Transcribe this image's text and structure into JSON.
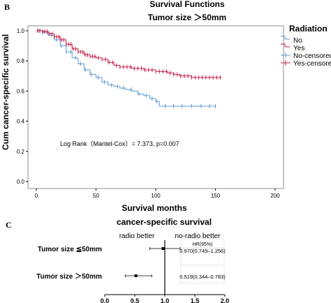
{
  "panel_b": {
    "panel_label": "B",
    "title": "Survival Functions",
    "subtitle": "Tumor size ＞50mm",
    "ylabel": "Cum cancer-specific survival",
    "xlabel": "Survival months",
    "annotation": "Log Rank（Mantel-Cox）= 7.373, p=0.007",
    "legend_title": "Radiation",
    "legend_items": [
      "No",
      "Yes",
      "No-censored",
      "Yes-censored"
    ],
    "colors": {
      "No": "#5b9bd5",
      "Yes": "#c81e46",
      "plot_bg": "#ffffff",
      "frame": "#8c8c8c"
    }
  },
  "panel_c": {
    "panel_label": "C",
    "title": "cancer-specific survival",
    "left_header": "radio better",
    "right_header": "no-radio better",
    "hr_header": "HR(95%)",
    "rows": [
      {
        "label": "Tumor size ≦50mm",
        "hr_text": "0.970(0.749‒1.256)"
      },
      {
        "label": "Tumor size ＞50mm",
        "hr_text": "0.519(0.344‒0.783)"
      }
    ],
    "x_ticks": [
      "0.0",
      "0.5",
      "1.0",
      "1.5",
      "2.0"
    ]
  },
  "chart_data": [
    {
      "type": "line",
      "title": "Survival Functions",
      "subtitle": "Tumor size ＞50mm",
      "xlabel": "Survival months",
      "ylabel": "Cum cancer-specific survival",
      "xlim": [
        0,
        200
      ],
      "ylim": [
        0.0,
        1.0
      ],
      "x_ticks": [
        0,
        50,
        100,
        150,
        200
      ],
      "y_ticks": [
        0.0,
        0.2,
        0.4,
        0.6,
        0.8,
        1.0
      ],
      "y_tick_labels": [
        "0.0",
        "0.2",
        "0.4",
        "0.6",
        "0.8",
        "1.0"
      ],
      "grid": false,
      "legend": "right",
      "series": [
        {
          "name": "No",
          "x": [
            0,
            5,
            10,
            15,
            20,
            25,
            30,
            35,
            40,
            45,
            50,
            55,
            60,
            65,
            70,
            75,
            80,
            85,
            90,
            95,
            100,
            103,
            110,
            120,
            130,
            140,
            150
          ],
          "y": [
            1.0,
            0.99,
            0.97,
            0.94,
            0.9,
            0.86,
            0.82,
            0.78,
            0.74,
            0.71,
            0.69,
            0.66,
            0.64,
            0.63,
            0.62,
            0.61,
            0.6,
            0.58,
            0.57,
            0.55,
            0.53,
            0.5,
            0.5,
            0.5,
            0.5,
            0.5,
            0.5
          ],
          "censored_x": [
            2,
            6,
            9,
            13,
            17,
            21,
            25,
            29,
            33,
            37,
            41,
            46,
            52,
            57,
            63,
            68,
            73,
            79,
            86,
            92,
            97,
            101,
            108,
            115,
            122,
            130,
            138,
            145,
            150
          ]
        },
        {
          "name": "Yes",
          "x": [
            0,
            5,
            10,
            15,
            20,
            25,
            30,
            35,
            40,
            45,
            50,
            55,
            60,
            65,
            70,
            75,
            80,
            85,
            90,
            95,
            100,
            105,
            110,
            115,
            120,
            130,
            140,
            150,
            155
          ],
          "y": [
            1.0,
            0.995,
            0.98,
            0.96,
            0.94,
            0.91,
            0.88,
            0.86,
            0.84,
            0.83,
            0.82,
            0.81,
            0.79,
            0.77,
            0.76,
            0.76,
            0.75,
            0.75,
            0.74,
            0.74,
            0.73,
            0.73,
            0.72,
            0.71,
            0.7,
            0.69,
            0.69,
            0.69,
            0.69
          ],
          "censored_x": [
            1,
            3,
            5,
            7,
            9,
            11,
            13,
            15,
            17,
            19,
            21,
            23,
            25,
            27,
            29,
            31,
            33,
            35,
            37,
            39,
            41,
            43,
            45,
            47,
            49,
            52,
            55,
            58,
            61,
            64,
            67,
            70,
            73,
            76,
            79,
            82,
            85,
            88,
            91,
            94,
            97,
            100,
            103,
            106,
            109,
            112,
            115,
            118,
            121,
            124,
            127,
            130,
            133,
            136,
            139,
            142,
            145,
            148,
            151,
            154
          ]
        }
      ]
    },
    {
      "type": "scatter",
      "subtype": "forest",
      "title": "cancer-specific survival",
      "xlim": [
        0.0,
        2.0
      ],
      "x_ticks": [
        0.0,
        0.5,
        1.0,
        1.5,
        2.0
      ],
      "reference_line": 1.0,
      "categories": [
        "Tumor size ≦50mm",
        "Tumor size ＞50mm"
      ],
      "hr": [
        0.97,
        0.519
      ],
      "ci_low": [
        0.749,
        0.344
      ],
      "ci_high": [
        1.256,
        0.783
      ]
    }
  ]
}
